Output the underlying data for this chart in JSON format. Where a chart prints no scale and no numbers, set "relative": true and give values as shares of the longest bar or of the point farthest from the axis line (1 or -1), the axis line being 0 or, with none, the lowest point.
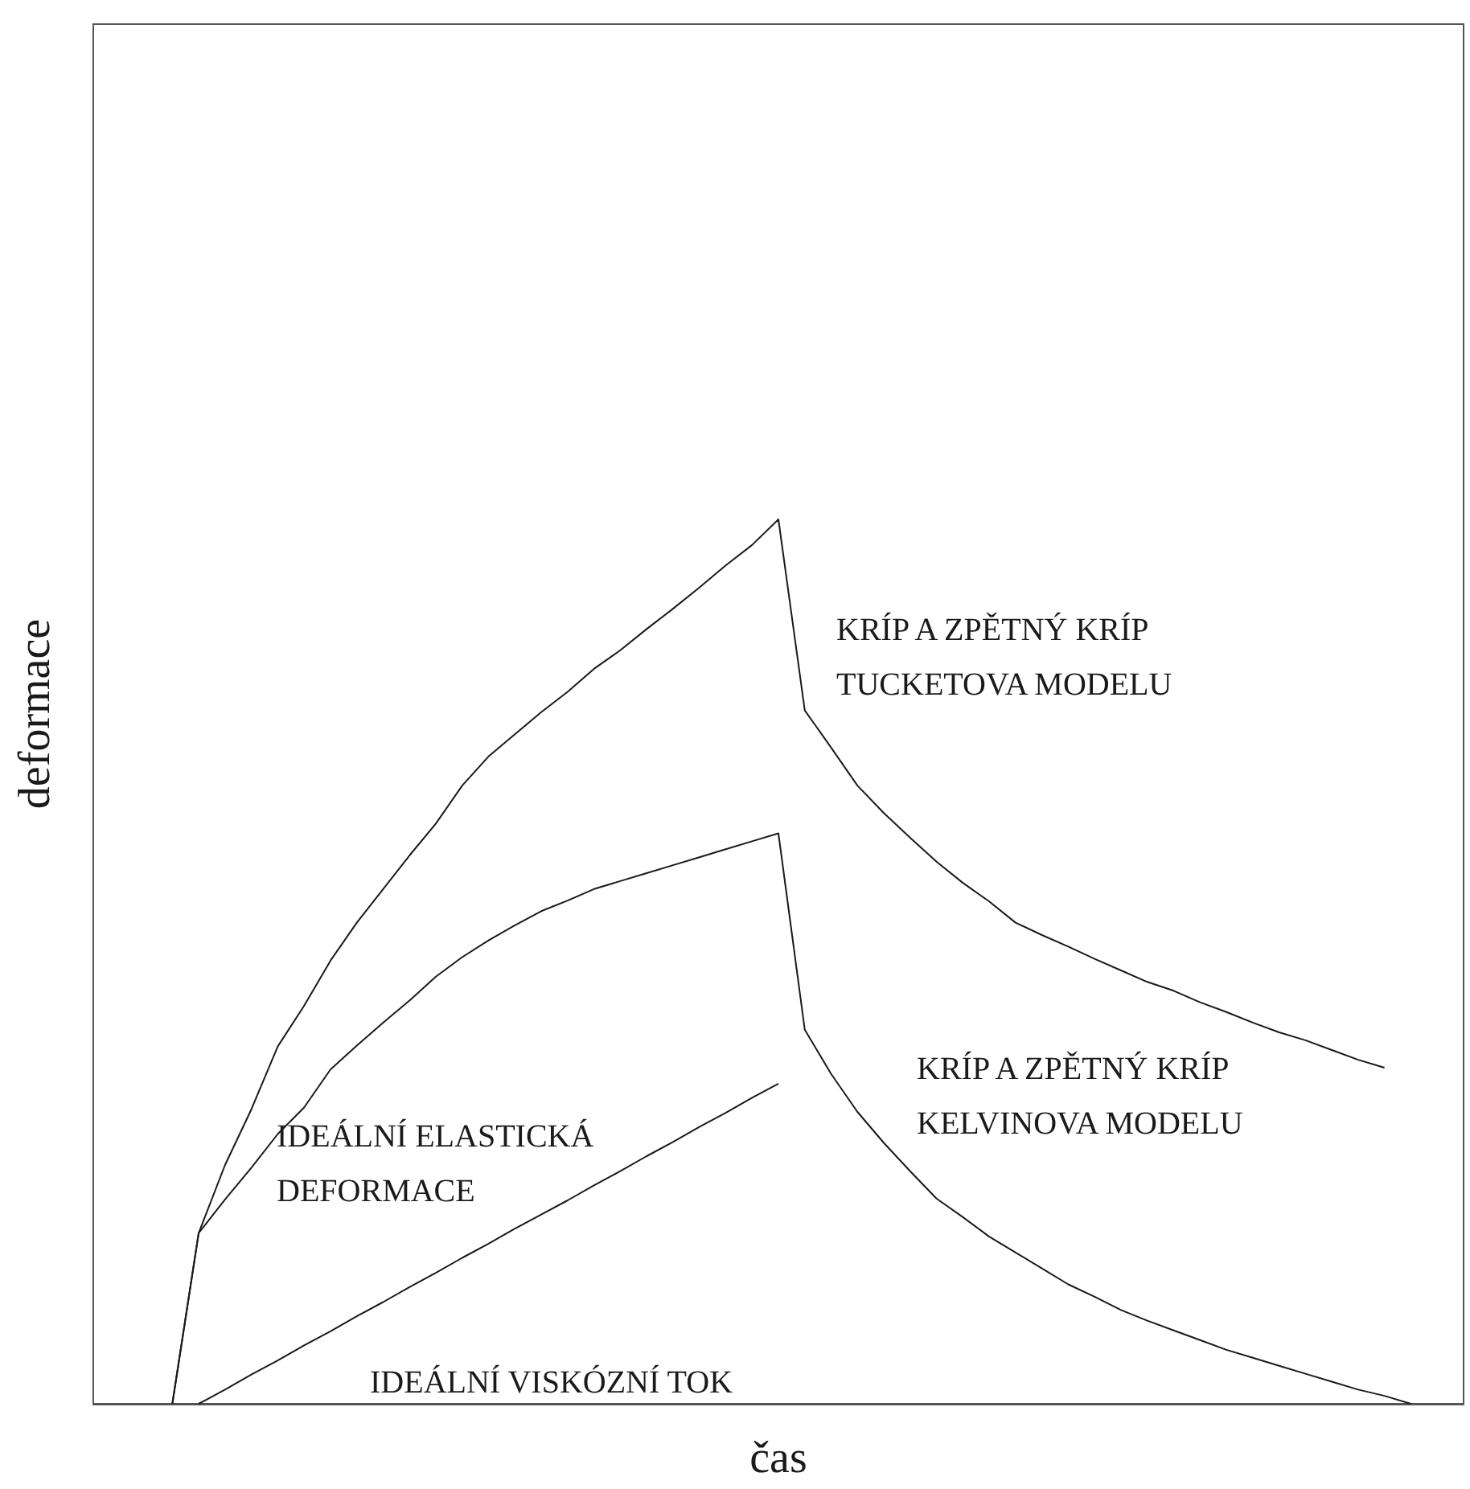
{
  "chart_data": {
    "type": "line",
    "relative": true,
    "xlabel": "čas",
    "ylabel": "deformace",
    "marker": "none",
    "categories": [
      null,
      null,
      null,
      null,
      null,
      null,
      null,
      null,
      null,
      null,
      null,
      null,
      null,
      null,
      null,
      null,
      null,
      null,
      null,
      null,
      null,
      null,
      null,
      null,
      null,
      null,
      null,
      null,
      null,
      null,
      null,
      null,
      null,
      null,
      null,
      null,
      null,
      null,
      null,
      null,
      null,
      null,
      null,
      null,
      null,
      null,
      null,
      null,
      null,
      null,
      null,
      null,
      null
    ],
    "series": [
      {
        "color": "#1a1a1a",
        "values": [
          null,
          null,
          null,
          0,
          0.193,
          0.27,
          0.333,
          0.404,
          0.45,
          0.501,
          0.544,
          0.582,
          0.62,
          0.656,
          0.699,
          0.732,
          0.757,
          0.782,
          0.805,
          0.831,
          0.852,
          0.876,
          0.899,
          0.923,
          0.948,
          0.971,
          1,
          0.784,
          0.742,
          0.699,
          0.668,
          0.64,
          0.613,
          0.589,
          0.568,
          0.544,
          0.53,
          0.517,
          0.503,
          0.49,
          0.477,
          0.467,
          0.454,
          0.443,
          0.431,
          0.42,
          0.411,
          0.4,
          0.389,
          0.38,
          null,
          null,
          null
        ]
      },
      {
        "color": "#1a1a1a",
        "values": [
          null,
          null,
          null,
          0,
          0.193,
          0.231,
          0.267,
          0.305,
          0.335,
          0.378,
          0.405,
          0.431,
          0.456,
          0.483,
          0.505,
          0.524,
          0.541,
          0.557,
          0.569,
          0.582,
          0.591,
          0.6,
          0.609,
          0.618,
          0.627,
          0.636,
          0.645,
          0.423,
          0.373,
          0.33,
          0.295,
          0.263,
          0.232,
          0.211,
          0.189,
          0.171,
          0.153,
          0.135,
          0.121,
          0.106,
          0.094,
          0.083,
          0.072,
          0.061,
          0.052,
          0.043,
          0.034,
          0.025,
          0.016,
          0.009,
          0,
          null,
          null
        ]
      },
      {
        "color": "#1a1a1a",
        "values": [
          null,
          null,
          null,
          null,
          0,
          0.016,
          0.033,
          0.049,
          0.066,
          0.082,
          0.099,
          0.115,
          0.132,
          0.148,
          0.165,
          0.181,
          0.198,
          0.214,
          0.23,
          0.247,
          0.263,
          0.28,
          0.296,
          0.313,
          0.329,
          0.346,
          0.362,
          null,
          null,
          null,
          null,
          null,
          null,
          null,
          null,
          null,
          null,
          null,
          null,
          null,
          null,
          null,
          null,
          null,
          null,
          null,
          null,
          null,
          null,
          null,
          null,
          null,
          null
        ]
      }
    ],
    "annotations": [
      "KRÍP A ZPĚTNÝ KRÍP\nTUCKETOVA MODELU",
      "KRÍP A ZPĚTNÝ KRÍP\nKELVINOVA MODELU",
      "IDEÁLNÍ ELASTICKÁ\nDEFORMACE",
      "IDEÁLNÍ VISKÓZNÍ TOK"
    ]
  }
}
